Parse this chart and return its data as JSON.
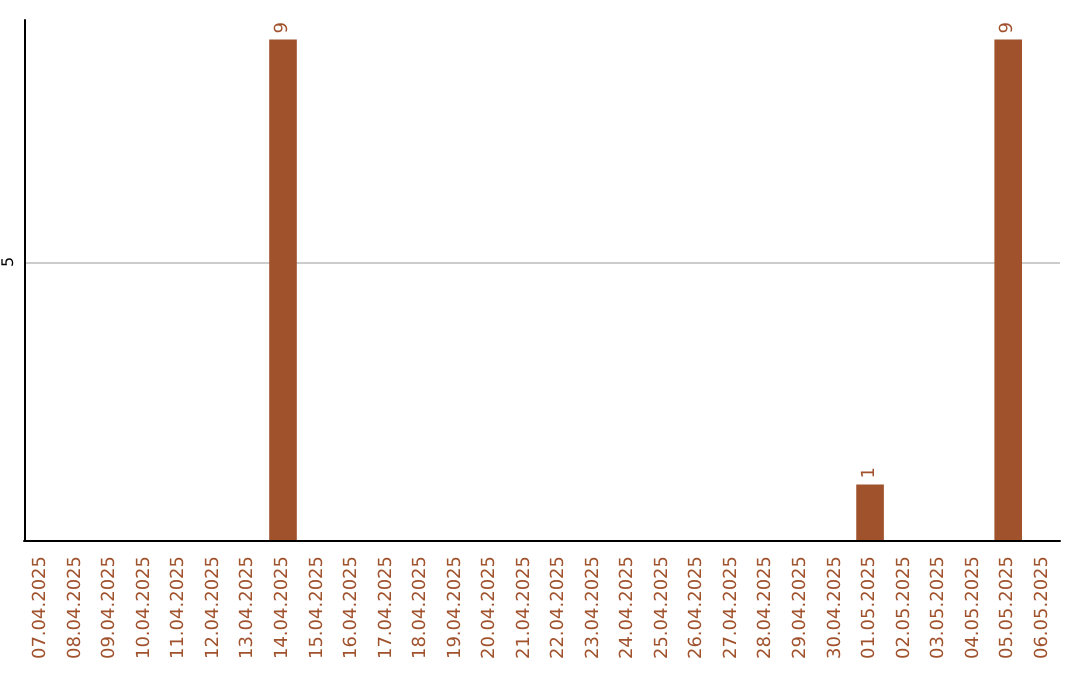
{
  "chart_data": {
    "type": "bar",
    "categories": [
      "07.04.2025",
      "08.04.2025",
      "09.04.2025",
      "10.04.2025",
      "11.04.2025",
      "12.04.2025",
      "13.04.2025",
      "14.04.2025",
      "15.04.2025",
      "16.04.2025",
      "17.04.2025",
      "18.04.2025",
      "19.04.2025",
      "20.04.2025",
      "21.04.2025",
      "22.04.2025",
      "23.04.2025",
      "24.04.2025",
      "25.04.2025",
      "26.04.2025",
      "27.04.2025",
      "28.04.2025",
      "29.04.2025",
      "30.04.2025",
      "01.05.2025",
      "02.05.2025",
      "03.05.2025",
      "04.05.2025",
      "05.05.2025",
      "06.05.2025"
    ],
    "values": [
      0,
      0,
      0,
      0,
      0,
      0,
      0,
      9,
      0,
      0,
      0,
      0,
      0,
      0,
      0,
      0,
      0,
      0,
      0,
      0,
      0,
      0,
      0,
      0,
      1,
      0,
      0,
      0,
      9,
      0
    ],
    "value_labels": [
      null,
      null,
      null,
      null,
      null,
      null,
      null,
      "9",
      null,
      null,
      null,
      null,
      null,
      null,
      null,
      null,
      null,
      null,
      null,
      null,
      null,
      null,
      null,
      null,
      "1",
      null,
      null,
      null,
      "9",
      null
    ],
    "color": "#a0522d",
    "ylim": [
      0,
      9.35
    ],
    "yticks": [
      5
    ],
    "grid": "y"
  }
}
